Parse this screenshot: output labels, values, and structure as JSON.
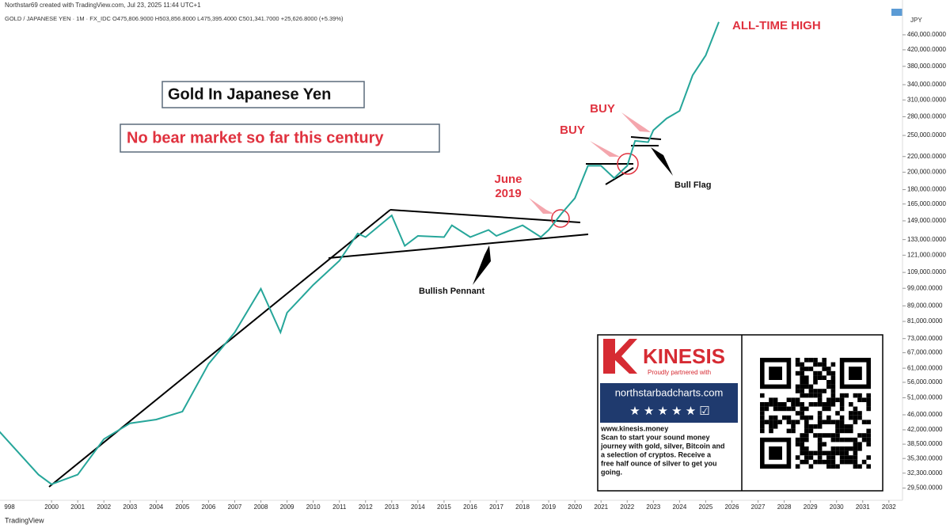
{
  "chart_data": {
    "type": "line",
    "header": "Northstar69 created with TradingView.com, Jul 23, 2025 11:44 UTC+1",
    "symbol_line": "GOLD / JAPANESE YEN · 1M · FX_IDC  O475,806.9000  H503,856.8000  L475,395.4000  C501,341.7000  +25,626.8000 (+5.39%)",
    "axis_unit": "JPY",
    "footer": "TradingView",
    "annotations": {
      "title": "Gold In Japanese Yen",
      "subtitle": "No bear market so far this century",
      "all_time_high": "ALL-TIME HIGH",
      "june_2019": [
        "June",
        "2019"
      ],
      "buy_1": "BUY",
      "buy_2": "BUY",
      "bull_flag": "Bull Flag",
      "bullish_pennant": "Bullish Pennant"
    },
    "ad": {
      "brand": "KINESIS",
      "partner": "Proudly partnered with",
      "site": "northstarbadcharts.com",
      "url": "www.kinesis.money",
      "text": [
        "Scan to start your sound money",
        "journey with gold, silver, Bitcoin and",
        "a selection of cryptos. Receive a",
        "free half ounce of silver to get you",
        "going."
      ]
    },
    "log_scale": true,
    "series": [
      {
        "name": "GOLD / JAPANESE YEN",
        "color": "#26a69a",
        "x": [
          1998.0,
          1999.5,
          2000.0,
          2001.0,
          2002.0,
          2003.0,
          2004.0,
          2005.0,
          2006.0,
          2007.0,
          2008.0,
          2008.75,
          2009.0,
          2010.0,
          2011.0,
          2011.7,
          2012.0,
          2013.0,
          2013.5,
          2014.0,
          2015.0,
          2015.3,
          2016.0,
          2016.7,
          2017.0,
          2018.0,
          2018.7,
          2019.0,
          2019.5,
          2020.0,
          2020.5,
          2021.0,
          2021.5,
          2022.0,
          2022.3,
          2022.8,
          2023.0,
          2023.5,
          2024.0,
          2024.5,
          2025.0,
          2025.5
        ],
        "values": [
          41600,
          32000,
          30200,
          32000,
          39700,
          43700,
          44700,
          46900,
          62600,
          75800,
          98700,
          75800,
          85400,
          101000,
          117000,
          138000,
          135000,
          154000,
          128000,
          136000,
          135000,
          145000,
          135000,
          141000,
          136000,
          145000,
          135000,
          141000,
          156000,
          171000,
          208000,
          208000,
          193000,
          208000,
          242000,
          240000,
          258000,
          277000,
          290000,
          360000,
          406000,
          497000
        ]
      }
    ],
    "xlim": [
      1998.03,
      2032.52
    ],
    "xticks": [
      {
        "value": 1998,
        "label": "998"
      },
      2000,
      2001,
      2002,
      2003,
      2004,
      2005,
      2006,
      2007,
      2008,
      2009,
      2010,
      2011,
      2012,
      2013,
      2014,
      2015,
      2016,
      2017,
      2018,
      2019,
      2020,
      2021,
      2022,
      2023,
      2024,
      2025,
      2026,
      2027,
      2028,
      2029,
      2030,
      2031,
      2032
    ],
    "ylim": [
      27400,
      516000
    ],
    "yticks": [
      {
        "value": 460000,
        "label": "460,000.0000"
      },
      {
        "value": 420000,
        "label": "420,000.0000"
      },
      {
        "value": 380000,
        "label": "380,000.0000"
      },
      {
        "value": 340000,
        "label": "340,000.0000"
      },
      {
        "value": 310000,
        "label": "310,000.0000"
      },
      {
        "value": 280000,
        "label": "280,000.0000"
      },
      {
        "value": 250000,
        "label": "250,000.0000"
      },
      {
        "value": 220000,
        "label": "220,000.0000"
      },
      {
        "value": 200000,
        "label": "200,000.0000"
      },
      {
        "value": 180000,
        "label": "180,000.0000"
      },
      {
        "value": 165000,
        "label": "165,000.0000"
      },
      {
        "value": 149000,
        "label": "149,000.0000"
      },
      {
        "value": 133000,
        "label": "133,000.0000"
      },
      {
        "value": 121000,
        "label": "121,000.0000"
      },
      {
        "value": 109000,
        "label": "109,000.0000"
      },
      {
        "value": 99000,
        "label": "99,000.0000"
      },
      {
        "value": 89000,
        "label": "89,000.0000"
      },
      {
        "value": 81000,
        "label": "81,000.0000"
      },
      {
        "value": 73000,
        "label": "73,000.0000"
      },
      {
        "value": 67000,
        "label": "67,000.0000"
      },
      {
        "value": 61000,
        "label": "61,000.0000"
      },
      {
        "value": 56000,
        "label": "56,000.0000"
      },
      {
        "value": 51000,
        "label": "51,000.0000"
      },
      {
        "value": 46000,
        "label": "46,000.0000"
      },
      {
        "value": 42000,
        "label": "42,000.0000"
      },
      {
        "value": 38500,
        "label": "38,500.0000"
      },
      {
        "value": 35300,
        "label": "35,300.0000"
      },
      {
        "value": 32300,
        "label": "32,300.0000"
      },
      {
        "value": 29500,
        "label": "29,500.0000"
      }
    ]
  }
}
